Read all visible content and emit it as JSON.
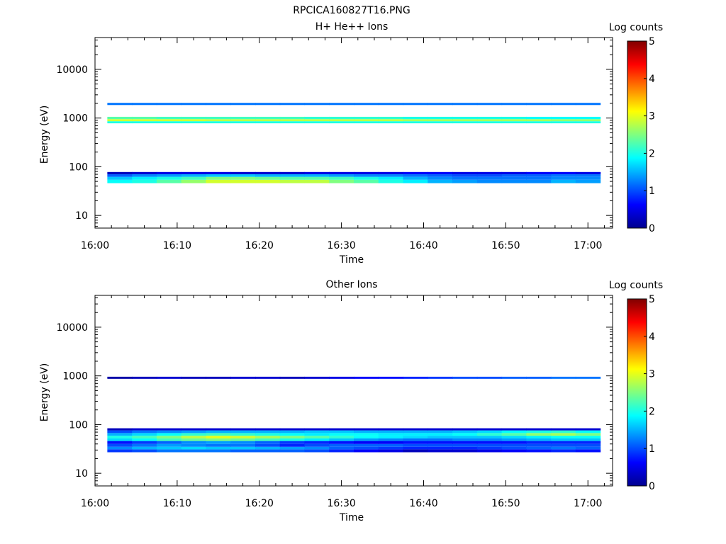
{
  "title": "RPCICA160827T16.PNG",
  "chart_data": [
    {
      "type": "heatmap",
      "title": "H+ He++ Ions",
      "xlabel": "Time",
      "ylabel": "Energy (eV)",
      "xlim": [
        "16:00",
        "17:03"
      ],
      "ylim": [
        5.5,
        45000
      ],
      "yscale": "log",
      "xticks": [
        "16:00",
        "16:10",
        "16:20",
        "16:30",
        "16:40",
        "16:50",
        "17:00"
      ],
      "yticks": [
        "10",
        "100",
        "1000",
        "10000"
      ],
      "colorbar": {
        "label": "Log counts",
        "range": [
          0,
          5
        ],
        "ticks": [
          "0",
          "1",
          "2",
          "3",
          "4",
          "5"
        ]
      },
      "columns": [
        "16:03",
        "16:06",
        "16:09",
        "16:12",
        "16:15",
        "16:18",
        "16:21",
        "16:24",
        "16:27",
        "16:30",
        "16:33",
        "16:36",
        "16:39",
        "16:42",
        "16:45",
        "16:48",
        "16:51",
        "16:54",
        "16:57",
        "17:00"
      ],
      "bands": [
        {
          "energy_low": 46,
          "energy_high": 54,
          "values": [
            1.9,
            2.0,
            2.3,
            2.6,
            2.9,
            2.9,
            2.9,
            2.8,
            2.8,
            2.5,
            2.3,
            2.0,
            1.8,
            1.5,
            1.4,
            1.3,
            1.3,
            1.3,
            1.5,
            1.4
          ]
        },
        {
          "energy_low": 54,
          "energy_high": 62,
          "values": [
            1.6,
            1.8,
            2.0,
            2.2,
            2.5,
            2.5,
            2.4,
            2.3,
            2.3,
            2.2,
            2.0,
            1.8,
            1.5,
            1.3,
            1.2,
            1.2,
            1.2,
            1.2,
            1.3,
            1.3
          ]
        },
        {
          "energy_low": 62,
          "energy_high": 70,
          "values": [
            1.1,
            1.3,
            1.4,
            1.5,
            1.6,
            1.6,
            1.5,
            1.5,
            1.5,
            1.4,
            1.3,
            1.3,
            1.2,
            1.1,
            1.0,
            1.0,
            1.1,
            1.1,
            1.2,
            1.2
          ]
        },
        {
          "energy_low": 70,
          "energy_high": 78,
          "values": [
            0.3,
            0.4,
            0.5,
            0.5,
            0.5,
            0.4,
            0.4,
            0.4,
            0.5,
            0.5,
            0.5,
            0.5,
            0.6,
            0.6,
            0.5,
            0.5,
            0.5,
            0.6,
            0.6,
            0.5
          ]
        },
        {
          "energy_low": 780,
          "energy_high": 860,
          "values": [
            2.0,
            2.0,
            2.0,
            2.0,
            2.0,
            2.0,
            2.0,
            2.0,
            2.0,
            2.0,
            2.0,
            2.0,
            2.0,
            2.0,
            2.0,
            2.0,
            2.0,
            2.0,
            2.0,
            2.0
          ]
        },
        {
          "energy_low": 860,
          "energy_high": 950,
          "values": [
            2.9,
            2.9,
            2.9,
            2.9,
            2.8,
            2.8,
            2.8,
            2.8,
            2.8,
            2.8,
            2.8,
            2.8,
            2.7,
            2.7,
            2.7,
            2.7,
            2.7,
            2.7,
            2.6,
            2.6
          ]
        },
        {
          "energy_low": 950,
          "energy_high": 1060,
          "values": [
            2.3,
            2.3,
            2.2,
            2.2,
            2.2,
            2.2,
            2.2,
            2.2,
            2.1,
            2.1,
            2.1,
            2.1,
            2.0,
            2.0,
            2.0,
            2.0,
            2.0,
            1.9,
            1.9,
            1.9
          ]
        },
        {
          "energy_low": 1850,
          "energy_high": 2050,
          "values": [
            1.2,
            1.2,
            1.2,
            1.2,
            1.2,
            1.2,
            1.2,
            1.2,
            1.2,
            1.2,
            1.2,
            1.2,
            1.2,
            1.2,
            1.2,
            1.2,
            1.2,
            1.2,
            1.2,
            1.2
          ]
        }
      ]
    },
    {
      "type": "heatmap",
      "title": "Other Ions",
      "xlabel": "Time",
      "ylabel": "Energy (eV)",
      "xlim": [
        "16:00",
        "17:03"
      ],
      "ylim": [
        5.5,
        45000
      ],
      "yscale": "log",
      "xticks": [
        "16:00",
        "16:10",
        "16:20",
        "16:30",
        "16:40",
        "16:50",
        "17:00"
      ],
      "yticks": [
        "10",
        "100",
        "1000",
        "10000"
      ],
      "colorbar": {
        "label": "Log counts",
        "range": [
          0,
          5
        ],
        "ticks": [
          "0",
          "1",
          "2",
          "3",
          "4",
          "5"
        ]
      },
      "columns": [
        "16:03",
        "16:06",
        "16:09",
        "16:12",
        "16:15",
        "16:18",
        "16:21",
        "16:24",
        "16:27",
        "16:30",
        "16:33",
        "16:36",
        "16:39",
        "16:42",
        "16:45",
        "16:48",
        "16:51",
        "16:54",
        "16:57",
        "17:00"
      ],
      "bands": [
        {
          "energy_low": 27,
          "energy_high": 31,
          "values": [
            0.9,
            1.0,
            1.2,
            1.2,
            1.2,
            1.1,
            1.1,
            1.1,
            1.0,
            0.8,
            0.6,
            0.5,
            0.3,
            0.4,
            0.4,
            0.5,
            0.6,
            0.7,
            0.8,
            0.7
          ]
        },
        {
          "energy_low": 31,
          "energy_high": 35,
          "values": [
            1.3,
            1.5,
            1.6,
            1.7,
            1.6,
            1.6,
            1.5,
            1.4,
            1.3,
            1.1,
            1.0,
            0.9,
            0.8,
            0.8,
            0.8,
            0.9,
            1.0,
            1.1,
            1.2,
            1.1
          ]
        },
        {
          "energy_low": 35,
          "energy_high": 40,
          "values": [
            1.0,
            1.2,
            1.4,
            1.3,
            1.2,
            1.2,
            1.0,
            0.8,
            1.0,
            1.1,
            1.1,
            1.1,
            1.0,
            1.0,
            1.0,
            1.0,
            1.0,
            1.0,
            1.0,
            1.0
          ]
        },
        {
          "energy_low": 40,
          "energy_high": 46,
          "values": [
            0.7,
            0.9,
            1.1,
            1.3,
            1.4,
            1.3,
            1.1,
            0.9,
            0.8,
            0.7,
            0.6,
            0.6,
            0.7,
            0.7,
            0.7,
            0.7,
            0.7,
            0.8,
            0.8,
            0.8
          ]
        },
        {
          "energy_low": 46,
          "energy_high": 52,
          "values": [
            1.7,
            1.9,
            2.2,
            2.4,
            2.5,
            2.4,
            2.2,
            2.0,
            1.8,
            1.6,
            1.4,
            1.3,
            1.2,
            1.2,
            1.3,
            1.3,
            1.4,
            1.5,
            1.6,
            1.6
          ]
        },
        {
          "energy_low": 52,
          "energy_high": 59,
          "values": [
            2.0,
            2.2,
            2.5,
            2.8,
            3.0,
            2.9,
            2.7,
            2.5,
            2.3,
            2.1,
            1.9,
            1.8,
            1.7,
            1.6,
            1.6,
            1.6,
            1.7,
            1.8,
            1.9,
            1.9
          ]
        },
        {
          "energy_low": 59,
          "energy_high": 67,
          "values": [
            1.5,
            1.7,
            1.9,
            2.1,
            2.2,
            2.1,
            2.0,
            1.9,
            1.8,
            1.9,
            1.9,
            1.8,
            1.8,
            1.8,
            1.9,
            2.1,
            2.3,
            2.6,
            2.7,
            2.5
          ]
        },
        {
          "energy_low": 67,
          "energy_high": 76,
          "values": [
            1.0,
            1.2,
            1.3,
            1.4,
            1.5,
            1.5,
            1.5,
            1.5,
            1.6,
            1.6,
            1.5,
            1.5,
            1.5,
            1.5,
            1.6,
            1.7,
            1.9,
            2.0,
            2.1,
            1.9
          ]
        },
        {
          "energy_low": 76,
          "energy_high": 84,
          "values": [
            0.3,
            0.4,
            0.4,
            0.4,
            0.4,
            0.4,
            0.4,
            0.4,
            0.4,
            0.4,
            0.4,
            0.4,
            0.4,
            0.4,
            0.4,
            0.4,
            0.4,
            0.4,
            0.4,
            0.4
          ]
        },
        {
          "energy_low": 870,
          "energy_high": 960,
          "values": [
            0.2,
            0.3,
            0.4,
            0.3,
            0.3,
            0.4,
            0.4,
            0.3,
            0.4,
            0.5,
            0.6,
            0.7,
            0.8,
            0.9,
            1.0,
            1.0,
            1.1,
            1.1,
            1.2,
            1.2
          ]
        }
      ]
    }
  ]
}
